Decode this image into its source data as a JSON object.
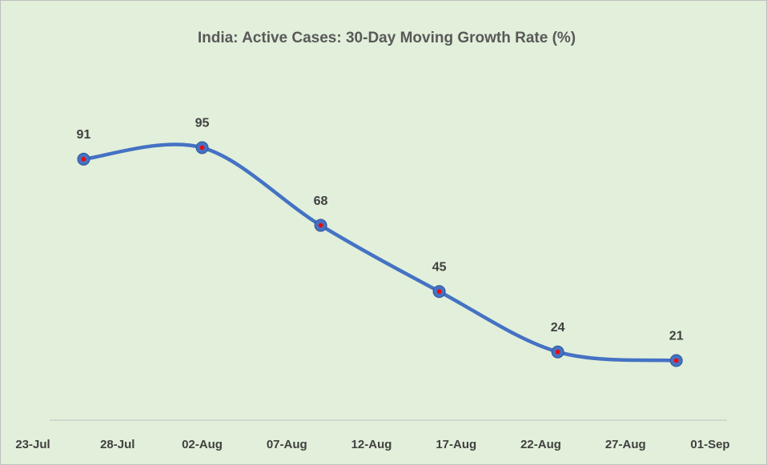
{
  "chart_data": {
    "type": "line",
    "title": "India: Active Cases: 30-Day Moving Growth Rate (%)",
    "x": [
      "26-Jul",
      "02-Aug",
      "09-Aug",
      "16-Aug",
      "23-Aug",
      "30-Aug"
    ],
    "series": [
      {
        "name": "Growth Rate",
        "color": "#4472c4",
        "marker_color": "#ff0000",
        "values": [
          91,
          95,
          68,
          45,
          24,
          21
        ]
      }
    ],
    "xlim": [
      "23-Jul",
      "01-Sep"
    ],
    "xticks": [
      "23-Jul",
      "28-Jul",
      "02-Aug",
      "07-Aug",
      "12-Aug",
      "17-Aug",
      "22-Aug",
      "27-Aug",
      "01-Sep"
    ],
    "ylim": [
      0,
      100
    ],
    "smooth": true,
    "grid": false
  }
}
